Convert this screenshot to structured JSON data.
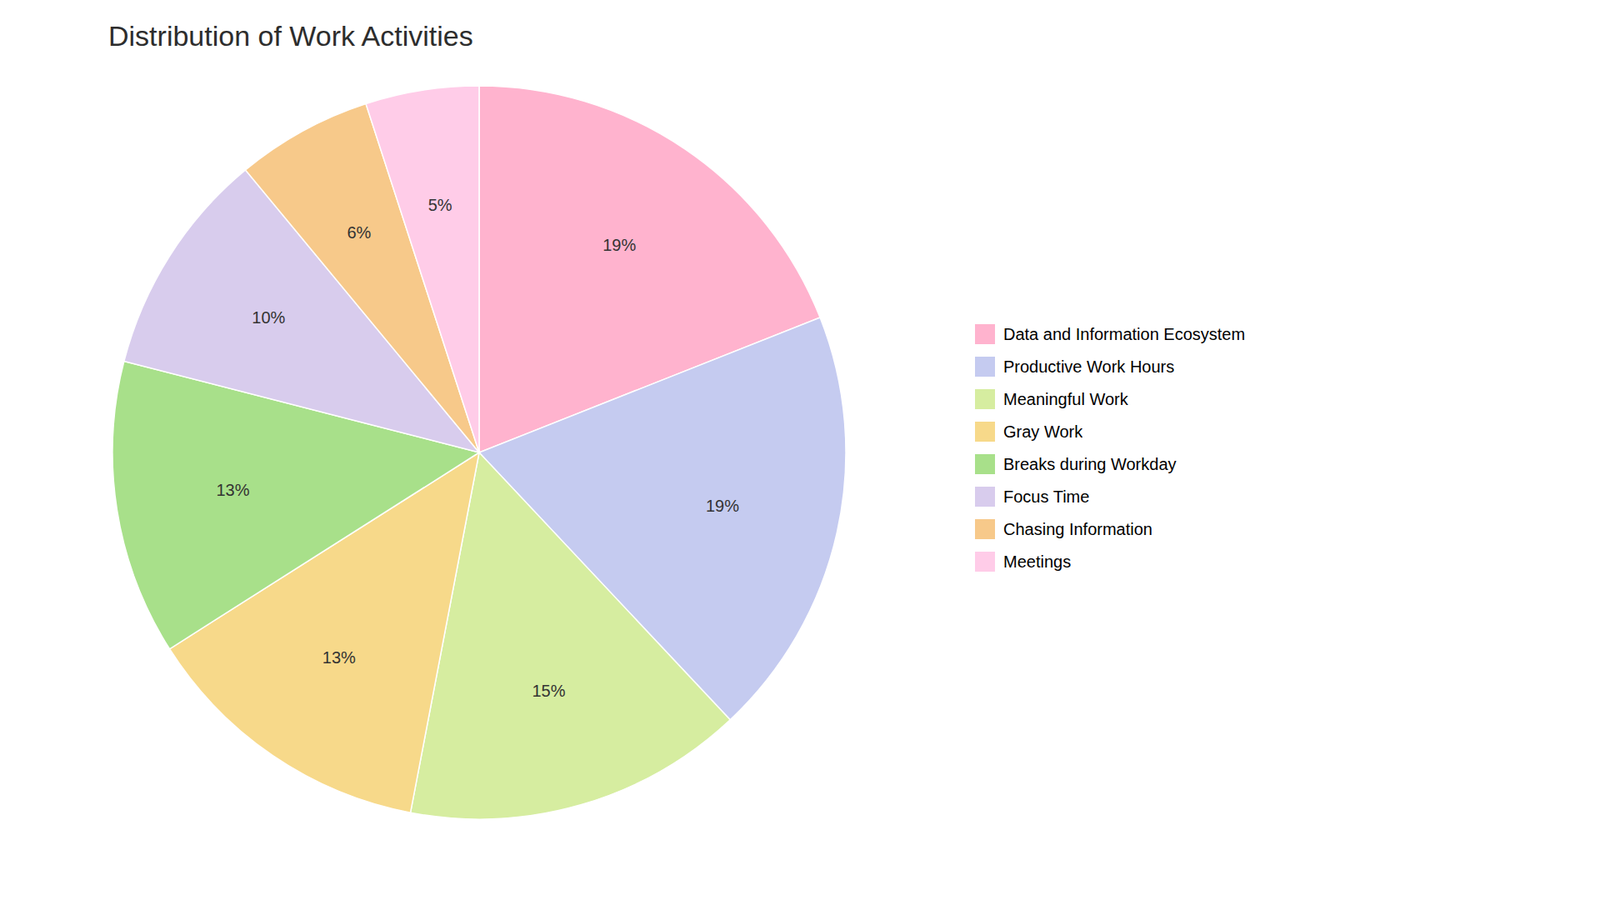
{
  "chart_data": {
    "type": "pie",
    "title": "Distribution of Work Activities",
    "categories": [
      "Data and Information Ecosystem",
      "Productive Work Hours",
      "Meaningful Work",
      "Gray Work",
      "Breaks during Workday",
      "Focus Time",
      "Chasing Information",
      "Meetings"
    ],
    "values": [
      19,
      19,
      15,
      13,
      13,
      10,
      6,
      5
    ],
    "value_labels": [
      "19%",
      "19%",
      "15%",
      "13%",
      "13%",
      "10%",
      "6%",
      "5%"
    ],
    "colors": [
      "#FFB3CE",
      "#C5CBF0",
      "#D6EDA0",
      "#F7D98A",
      "#A8E08A",
      "#D8CCED",
      "#F7C98A",
      "#FFCCE8"
    ],
    "data_labels": true,
    "legend": "right"
  }
}
